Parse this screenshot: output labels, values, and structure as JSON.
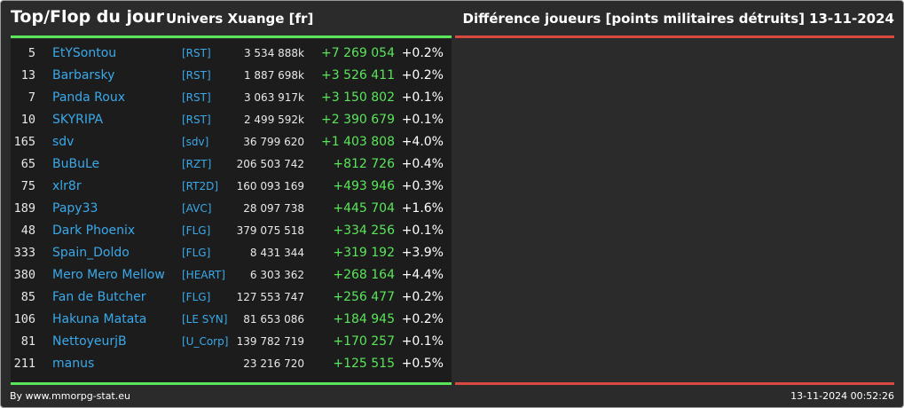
{
  "header": {
    "title": "Top/Flop du jour",
    "universe": "Univers Xuange [fr]",
    "metric": "Différence joueurs [points militaires détruits]",
    "date": "13-11-2024"
  },
  "colors": {
    "top_accent": "#5ae65a",
    "flop_accent": "#d9493f",
    "name_color": "#3aa9ea",
    "diff_color": "#5ae65a"
  },
  "rows": [
    {
      "rank": "5",
      "name": "EtYSontou",
      "alliance": "[RST]",
      "points": "3 534 888k",
      "diff": "+7 269 054",
      "pct": "+0.2%"
    },
    {
      "rank": "13",
      "name": "Barbarsky",
      "alliance": "[RST]",
      "points": "1 887 698k",
      "diff": "+3 526 411",
      "pct": "+0.2%"
    },
    {
      "rank": "7",
      "name": "Panda Roux",
      "alliance": "[RST]",
      "points": "3 063 917k",
      "diff": "+3 150 802",
      "pct": "+0.1%"
    },
    {
      "rank": "10",
      "name": "SKYRIPA",
      "alliance": "[RST]",
      "points": "2 499 592k",
      "diff": "+2 390 679",
      "pct": "+0.1%"
    },
    {
      "rank": "165",
      "name": "sdv",
      "alliance": "[sdv]",
      "points": "36 799 620",
      "diff": "+1 403 808",
      "pct": "+4.0%"
    },
    {
      "rank": "65",
      "name": "BuBuLe",
      "alliance": "[RZT]",
      "points": "206 503 742",
      "diff": "+812 726",
      "pct": "+0.4%"
    },
    {
      "rank": "75",
      "name": "xlr8r",
      "alliance": "[RT2D]",
      "points": "160 093 169",
      "diff": "+493 946",
      "pct": "+0.3%"
    },
    {
      "rank": "189",
      "name": "Papy33",
      "alliance": "[AVC]",
      "points": "28 097 738",
      "diff": "+445 704",
      "pct": "+1.6%"
    },
    {
      "rank": "48",
      "name": "Dark Phoenix",
      "alliance": "[FLG]",
      "points": "379 075 518",
      "diff": "+334 256",
      "pct": "+0.1%"
    },
    {
      "rank": "333",
      "name": "Spain_Doldo",
      "alliance": "[FLG]",
      "points": "8 431 344",
      "diff": "+319 192",
      "pct": "+3.9%"
    },
    {
      "rank": "380",
      "name": "Mero Mero Mellow",
      "alliance": "[HEART]",
      "points": "6 303 362",
      "diff": "+268 164",
      "pct": "+4.4%"
    },
    {
      "rank": "85",
      "name": "Fan de Butcher",
      "alliance": "[FLG]",
      "points": "127 553 747",
      "diff": "+256 477",
      "pct": "+0.2%"
    },
    {
      "rank": "106",
      "name": "Hakuna Matata",
      "alliance": "[LE SYN]",
      "points": "81 653 086",
      "diff": "+184 945",
      "pct": "+0.2%"
    },
    {
      "rank": "81",
      "name": "NettoyeurjB",
      "alliance": "[U_Corp]",
      "points": "139 782 719",
      "diff": "+170 257",
      "pct": "+0.1%"
    },
    {
      "rank": "211",
      "name": "manus",
      "alliance": "",
      "points": "23 216 720",
      "diff": "+125 515",
      "pct": "+0.5%"
    }
  ],
  "footer": {
    "credit": "By www.mmorpg-stat.eu",
    "timestamp": "13-11-2024 00:52:26"
  }
}
